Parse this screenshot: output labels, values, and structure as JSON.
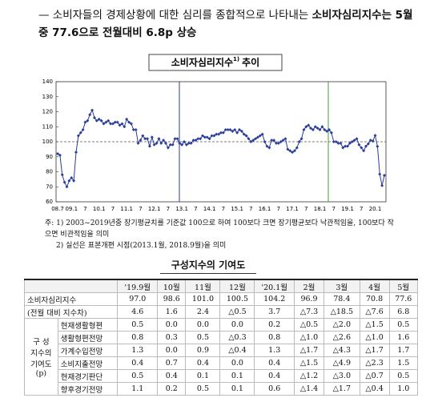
{
  "header": {
    "dash": "—",
    "text": "소비자들의 경제상황에 대한 심리를 종합적으로 나타내는 ",
    "bold": "소비자심리지수는 5월중 77.6으로 전월대비 6.8p 상승"
  },
  "chart_data": {
    "type": "line",
    "title": "소비자심리지수",
    "title_note": "1)",
    "title_suffix": "추이",
    "categories": [
      "08.7",
      null,
      null,
      null,
      null,
      null,
      "09.1",
      null,
      null,
      null,
      null,
      null,
      "7",
      null,
      null,
      null,
      null,
      null,
      "10.1",
      null,
      null,
      null,
      null,
      null,
      "7",
      null,
      null,
      null,
      null,
      null,
      "11.1",
      null,
      null,
      null,
      null,
      null,
      "7",
      null,
      null,
      null,
      null,
      null,
      "12.1",
      null,
      null,
      null,
      null,
      null,
      "7",
      null,
      null,
      null,
      null,
      null,
      "13.1",
      null,
      null,
      null,
      null,
      null,
      "7",
      null,
      null,
      null,
      null,
      null,
      "14.1",
      null,
      null,
      null,
      null,
      null,
      "7",
      null,
      null,
      null,
      null,
      null,
      "15.1",
      null,
      null,
      null,
      null,
      null,
      "7",
      null,
      null,
      null,
      null,
      null,
      "16.1",
      null,
      null,
      null,
      null,
      null,
      "7",
      null,
      null,
      null,
      null,
      null,
      "17.1",
      null,
      null,
      null,
      null,
      null,
      "7",
      null,
      null,
      null,
      null,
      null,
      "18.1",
      null,
      null,
      null,
      null,
      null,
      "7",
      null,
      null,
      null,
      null,
      null,
      "19.1",
      null,
      null,
      null,
      null,
      null,
      "7",
      null,
      null,
      null,
      null,
      null,
      "20.1",
      null,
      null,
      null,
      null
    ],
    "values": [
      92,
      91,
      78,
      73,
      70,
      74,
      76,
      74,
      93,
      104,
      106,
      108,
      113,
      114,
      118,
      121,
      116,
      114,
      115,
      114,
      112,
      113,
      114,
      112,
      112,
      113,
      113,
      111,
      112,
      110,
      115,
      113,
      112,
      108,
      108,
      99,
      101,
      104,
      102,
      102,
      97,
      103,
      98,
      99,
      102,
      99,
      101,
      99,
      96,
      98,
      98,
      102,
      102,
      99,
      98,
      100,
      98,
      99,
      99,
      101,
      101,
      102,
      102,
      104,
      103,
      103,
      102,
      104,
      104,
      105,
      105,
      106,
      106,
      108,
      108,
      108,
      107,
      108,
      106,
      108,
      107,
      105,
      104,
      102,
      100,
      101,
      102,
      103,
      104,
      105,
      100,
      97,
      96,
      101,
      101,
      99,
      99,
      100,
      101,
      102,
      95,
      94,
      93,
      94,
      96,
      100,
      102,
      108,
      110,
      111,
      109,
      108,
      110,
      109,
      108,
      110,
      108,
      107,
      108,
      106,
      100,
      100,
      99,
      99,
      96,
      97,
      97,
      99,
      100,
      101,
      102,
      98,
      96,
      94,
      97.0,
      98.6,
      101.0,
      100.5,
      104.2,
      96.9,
      78.4,
      70.8,
      77.6
    ],
    "color": "#2a3d9c",
    "ylim": [
      60,
      140
    ],
    "yticks": [
      60,
      70,
      80,
      90,
      100,
      110,
      120,
      130,
      140
    ],
    "hline": 100
  },
  "notes": [
    "주: 1) 2003~2019년중 장기평균치를 기준값 100으로 하여 100보다 크면 장기평균보다 낙관적임을, 100보다 작으면 비관적임을 의미",
    "2) 실선은 표본개편 시점(2013.1월, 2018.9월)을 의미"
  ],
  "table": {
    "title": "구성지수의 기여도",
    "columns": [
      "'19.9월",
      "10월",
      "11월",
      "12월",
      "'20.1월",
      "2월",
      "3월",
      "4월",
      "5월"
    ],
    "index_row": {
      "label": "소비자심리지수",
      "values": [
        "97.0",
        "98.6",
        "101.0",
        "100.5",
        "104.2",
        "96.9",
        "78.4",
        "70.8",
        "77.6"
      ]
    },
    "diff_row": {
      "label": "(전월 대비 지수차)",
      "values": [
        "4.6",
        "1.6",
        "2.4",
        "△0.5",
        "3.7",
        "△7.3",
        "△18.5",
        "△7.6",
        "6.8"
      ]
    },
    "group_label": [
      "구 성",
      "지수의",
      "기여도",
      "(p)"
    ],
    "rows": [
      {
        "label": "현재생활형편",
        "values": [
          "0.5",
          "0.0",
          "0.0",
          "0.0",
          "0.2",
          "△0.5",
          "△2.0",
          "△1.5",
          "0.5"
        ]
      },
      {
        "label": "생활형편전망",
        "values": [
          "0.8",
          "0.3",
          "0.5",
          "△0.3",
          "0.8",
          "△1.0",
          "△2.6",
          "△1.0",
          "1.6"
        ]
      },
      {
        "label": "가계수입전망",
        "values": [
          "1.3",
          "0.0",
          "0.9",
          "△0.4",
          "1.3",
          "△1.7",
          "△4.3",
          "△1.7",
          "1.7"
        ]
      },
      {
        "label": "소비지출전망",
        "values": [
          "0.4",
          "0.7",
          "0.4",
          "0.0",
          "0.4",
          "△1.5",
          "△4.9",
          "△2.3",
          "1.5"
        ]
      },
      {
        "label": "현재경기판단",
        "values": [
          "0.5",
          "0.4",
          "0.1",
          "0.1",
          "0.4",
          "△1.2",
          "△3.0",
          "△0.7",
          "0.5"
        ]
      },
      {
        "label": "향후경기전망",
        "values": [
          "1.1",
          "0.2",
          "0.5",
          "0.1",
          "0.6",
          "△1.4",
          "△1.7",
          "△0.4",
          "1.0"
        ]
      }
    ]
  }
}
